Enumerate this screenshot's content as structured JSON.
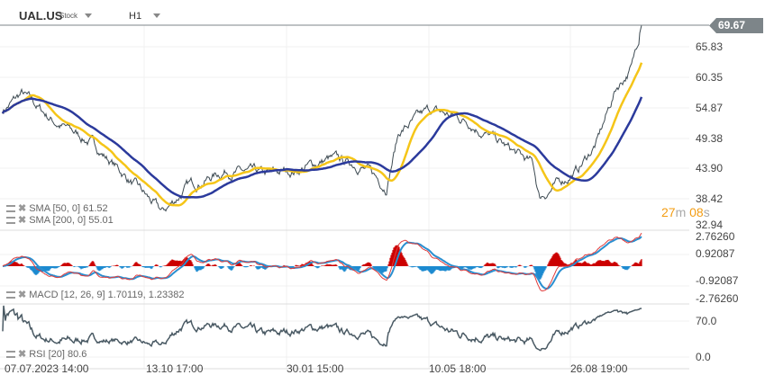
{
  "header": {
    "symbol": "UAL.US",
    "type": "Stock",
    "timeframe": "H1"
  },
  "price_axis": {
    "current": "69.67",
    "ticks": [
      "65.83",
      "60.35",
      "54.87",
      "49.38",
      "43.90",
      "38.42",
      "32.94"
    ]
  },
  "macd_axis": {
    "ticks": [
      "2.76260",
      "0.92087",
      "-0.92087",
      "-2.76260"
    ]
  },
  "rsi_axis": {
    "ticks": [
      "70.0",
      "0.0"
    ]
  },
  "timer": {
    "minutes": "27",
    "m": "m",
    "seconds": "08",
    "s": "s"
  },
  "legends": {
    "sma50": "SMA [50, 0] 61.52",
    "sma200": "SMA [200, 0] 55.01",
    "macd": "MACD [12, 26, 9] 1.70119, 1.23382",
    "rsi": "RSI [20] 80.6"
  },
  "x_labels": [
    "07.07.2023  14:00",
    "13.10  17:00",
    "30.01  15:00",
    "10.05  18:00",
    "26.08  19:00"
  ],
  "colors": {
    "price": "#3d4a52",
    "sma50": "#f5c518",
    "sma200": "#2b3a9c",
    "macd": "#e03c3c",
    "signal": "#2a8fd0",
    "hist_pos": "#cc0000",
    "hist_neg": "#1d8ad0",
    "rsi": "#4a5a64"
  },
  "chart_data": {
    "type": "line",
    "title": "UAL.US H1",
    "price_keypoints": {
      "t": [
        0,
        3,
        8,
        14,
        20,
        25,
        29,
        35,
        41,
        46,
        51,
        56,
        60,
        62,
        67,
        73,
        79,
        83,
        84,
        90,
        93,
        96,
        98.5,
        100
      ],
      "price": [
        54,
        57,
        52,
        48,
        41,
        35,
        40,
        43,
        42,
        43,
        45,
        44,
        40,
        50,
        54,
        52,
        47,
        44,
        38,
        43,
        48,
        58,
        62,
        69.67
      ]
    },
    "ylim": [
      32.94,
      69.67
    ]
  }
}
